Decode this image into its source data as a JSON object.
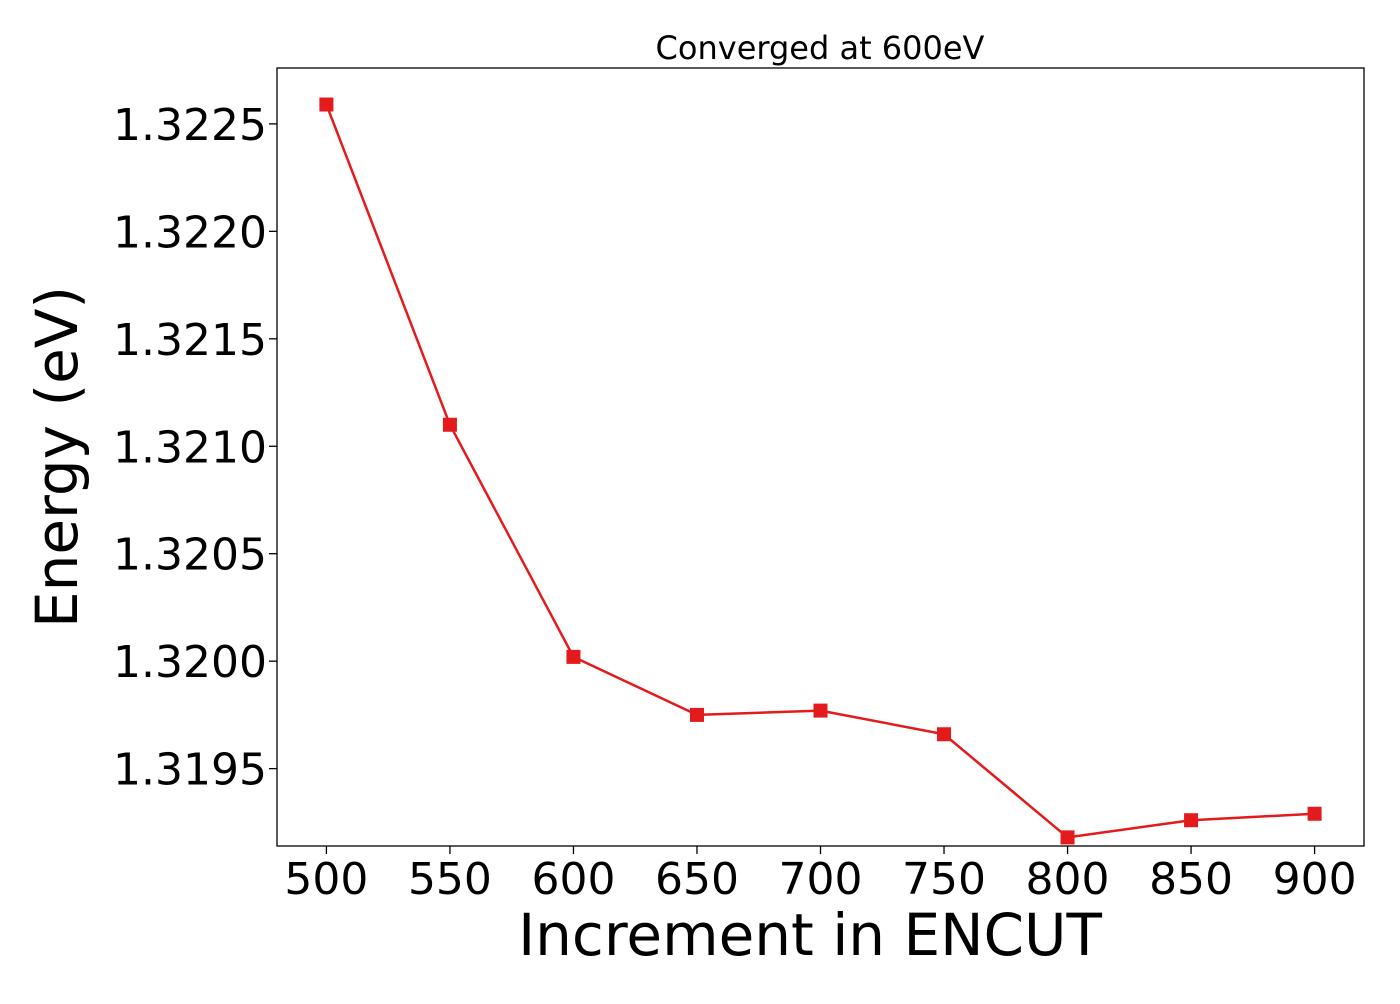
{
  "chart_data": {
    "type": "line",
    "title": "Converged at 600eV",
    "xlabel": "Increment in ENCUT",
    "ylabel": "Energy (eV)",
    "x": [
      500,
      550,
      600,
      650,
      700,
      750,
      800,
      850,
      900
    ],
    "series": [
      {
        "values": [
          1.32259,
          1.3211,
          1.32002,
          1.31975,
          1.31977,
          1.31966,
          1.31918,
          1.31926,
          1.31929
        ],
        "color": "#e41a1c",
        "marker": "square"
      }
    ],
    "xlim": [
      480,
      920
    ],
    "ylim": [
      1.31914,
      1.32276
    ],
    "xticks": [
      500,
      550,
      600,
      650,
      700,
      750,
      800,
      850,
      900
    ],
    "yticks": [
      1.3195,
      1.32,
      1.3205,
      1.321,
      1.3215,
      1.322,
      1.3225
    ],
    "ytick_labels": [
      "1.3195",
      "1.3200",
      "1.3205",
      "1.3210",
      "1.3215",
      "1.3220",
      "1.3225"
    ],
    "grid": false,
    "legend": "none"
  }
}
